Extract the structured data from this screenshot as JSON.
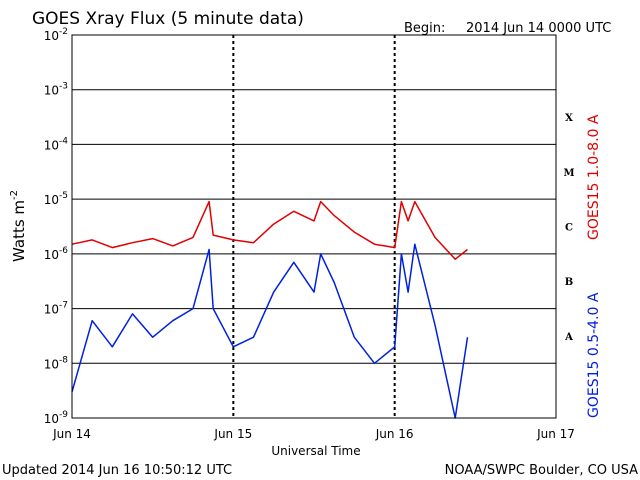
{
  "title": "GOES Xray Flux (5 minute data)",
  "begin_label": "Begin:",
  "begin_date": "2014 Jun 14 0000 UTC",
  "updated": "Updated 2014 Jun 16 10:50:12 UTC",
  "credit": "NOAA/SWPC Boulder, CO USA",
  "colors": {
    "long": "#e00000",
    "short": "#0020e0",
    "grid": "#000000",
    "bg": "#ffffff"
  },
  "chart_data": {
    "type": "line",
    "title": "GOES Xray Flux (5 minute data)",
    "xlabel": "Universal Time",
    "ylabel_base": "Watts m",
    "ylabel_exp": "-2",
    "y_scale": "log",
    "ylim": [
      1e-09,
      0.01
    ],
    "xlim": [
      "2014-06-14 00:00",
      "2014-06-17 00:00"
    ],
    "grid": "horizontal at each decade, dashed vertical at day boundaries",
    "x_ticks": [
      "Jun 14",
      "Jun 15",
      "Jun 16",
      "Jun 17"
    ],
    "y_ticks": [
      {
        "base": "10",
        "exp": "-2"
      },
      {
        "base": "10",
        "exp": "-3"
      },
      {
        "base": "10",
        "exp": "-4"
      },
      {
        "base": "10",
        "exp": "-5"
      },
      {
        "base": "10",
        "exp": "-6"
      },
      {
        "base": "10",
        "exp": "-7"
      },
      {
        "base": "10",
        "exp": "-8"
      },
      {
        "base": "10",
        "exp": "-9"
      }
    ],
    "flare_classes": [
      "X",
      "M",
      "C",
      "B",
      "A"
    ],
    "series": [
      {
        "name": "GOES15 1.0-8.0 A",
        "x": [
          "2014-06-14 00:00",
          "2014-06-14 03:00",
          "2014-06-14 06:00",
          "2014-06-14 09:00",
          "2014-06-14 12:00",
          "2014-06-14 15:00",
          "2014-06-14 18:00",
          "2014-06-14 20:24",
          "2014-06-14 21:00",
          "2014-06-15 00:00",
          "2014-06-15 03:00",
          "2014-06-15 06:00",
          "2014-06-15 09:00",
          "2014-06-15 12:00",
          "2014-06-15 13:00",
          "2014-06-15 15:00",
          "2014-06-15 18:00",
          "2014-06-15 21:00",
          "2014-06-16 00:00",
          "2014-06-16 01:00",
          "2014-06-16 02:00",
          "2014-06-16 03:00",
          "2014-06-16 06:00",
          "2014-06-16 09:00",
          "2014-06-16 10:50"
        ],
        "y": [
          1.5e-06,
          1.8e-06,
          1.3e-06,
          1.6e-06,
          1.9e-06,
          1.4e-06,
          2e-06,
          9e-06,
          2.2e-06,
          1.8e-06,
          1.6e-06,
          3.5e-06,
          6e-06,
          4e-06,
          9e-06,
          5e-06,
          2.5e-06,
          1.5e-06,
          1.3e-06,
          9e-06,
          4e-06,
          9e-06,
          2e-06,
          8e-07,
          1.2e-06
        ]
      },
      {
        "name": "GOES15 0.5-4.0 A",
        "x": [
          "2014-06-14 00:00",
          "2014-06-14 03:00",
          "2014-06-14 06:00",
          "2014-06-14 09:00",
          "2014-06-14 12:00",
          "2014-06-14 15:00",
          "2014-06-14 18:00",
          "2014-06-14 20:24",
          "2014-06-14 21:00",
          "2014-06-15 00:00",
          "2014-06-15 03:00",
          "2014-06-15 06:00",
          "2014-06-15 09:00",
          "2014-06-15 12:00",
          "2014-06-15 13:00",
          "2014-06-15 15:00",
          "2014-06-15 18:00",
          "2014-06-15 21:00",
          "2014-06-16 00:00",
          "2014-06-16 01:00",
          "2014-06-16 02:00",
          "2014-06-16 03:00",
          "2014-06-16 06:00",
          "2014-06-16 09:00",
          "2014-06-16 10:50"
        ],
        "y": [
          3e-09,
          6e-08,
          2e-08,
          8e-08,
          3e-08,
          6e-08,
          1e-07,
          1.2e-06,
          1e-07,
          2e-08,
          3e-08,
          2e-07,
          7e-07,
          2e-07,
          1e-06,
          3e-07,
          3e-08,
          1e-08,
          2e-08,
          1e-06,
          2e-07,
          1.5e-06,
          5e-08,
          1e-09,
          3e-08
        ]
      }
    ]
  }
}
